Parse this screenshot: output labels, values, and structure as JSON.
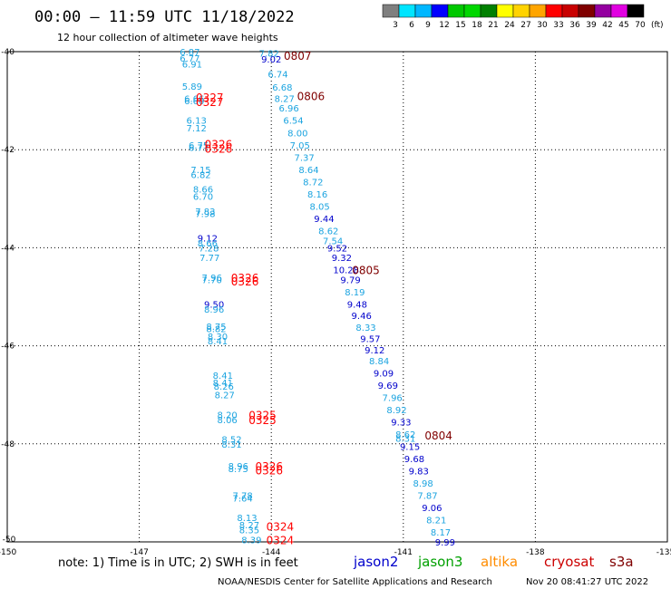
{
  "header": {
    "title": "00:00 — 11:59 UTC 11/18/2022",
    "subtitle": "12 hour collection of altimeter wave heights"
  },
  "colorbar": {
    "colors": [
      "#7f7f7f",
      "#00e5ff",
      "#00b7ff",
      "#0000ff",
      "#00c800",
      "#00d700",
      "#008000",
      "#ffff00",
      "#ffd300",
      "#ffa500",
      "#ff0000",
      "#c80000",
      "#7f0000",
      "#9400a0",
      "#e100e1",
      "#000000"
    ],
    "labels": [
      "3",
      "6",
      "9",
      "12",
      "15",
      "18",
      "21",
      "24",
      "27",
      "30",
      "33",
      "36",
      "39",
      "42",
      "45",
      "70"
    ],
    "unit": "(ft)"
  },
  "footer": {
    "note": "note:  1) Time is in UTC; 2) SWH is in feet",
    "credit": "NOAA/NESDIS Center for Satellite Applications and Research",
    "timestamp": "Nov 20 08:41:27 UTC 2022"
  },
  "legend": [
    {
      "name": "jason2",
      "color": "#0000cc"
    },
    {
      "name": "jason3",
      "color": "#00a000"
    },
    {
      "name": "altika",
      "color": "#ff8c00"
    },
    {
      "name": "cryosat",
      "color": "#cc0000"
    },
    {
      "name": "s3a",
      "color": "#800000"
    }
  ],
  "chart_data": {
    "type": "scatter",
    "title": "00:00 — 11:59 UTC 11/18/2022",
    "xlim": [
      -150,
      -135
    ],
    "ylim": [
      -50,
      -40
    ],
    "x_ticks": [
      "-150",
      "-147",
      "-144",
      "-141",
      "-138",
      "-135"
    ],
    "x_tick_values": [
      -150,
      -147,
      -144,
      -141,
      -138,
      -135
    ],
    "y_ticks": [
      "-40",
      "-42",
      "-44",
      "-46",
      "-48",
      "-50"
    ],
    "y_tick_values": [
      -40,
      -42,
      -44,
      -46,
      -48,
      -50
    ],
    "grid": true,
    "series": [
      {
        "name": "cyan track",
        "color": "#1ca4e0",
        "points": [
          {
            "x": -145.85,
            "y": -40.0,
            "label": "6.87"
          },
          {
            "x": -145.85,
            "y": -40.13,
            "label": "6.77"
          },
          {
            "x": -145.8,
            "y": -40.25,
            "label": "6.91"
          },
          {
            "x": -145.8,
            "y": -40.7,
            "label": "5.89"
          },
          {
            "x": -145.75,
            "y": -40.95,
            "label": "6.66"
          },
          {
            "x": -145.75,
            "y": -41.0,
            "label": "6.60"
          },
          {
            "x": -145.7,
            "y": -41.4,
            "label": "6.13"
          },
          {
            "x": -145.7,
            "y": -41.55,
            "label": "7.12"
          },
          {
            "x": -145.65,
            "y": -41.9,
            "label": "6.75"
          },
          {
            "x": -145.65,
            "y": -41.95,
            "label": "6.77"
          },
          {
            "x": -145.6,
            "y": -42.4,
            "label": "7.15"
          },
          {
            "x": -145.6,
            "y": -42.5,
            "label": "6.82"
          },
          {
            "x": -145.55,
            "y": -42.8,
            "label": "8.66"
          },
          {
            "x": -145.55,
            "y": -42.95,
            "label": "6.70"
          },
          {
            "x": -145.5,
            "y": -43.25,
            "label": "7.83"
          },
          {
            "x": -145.5,
            "y": -43.3,
            "label": "7.98"
          },
          {
            "x": -145.45,
            "y": -43.8,
            "label": "9.12",
            "color": "#0000cc"
          },
          {
            "x": -145.45,
            "y": -43.9,
            "label": "8.66"
          },
          {
            "x": -145.42,
            "y": -44.0,
            "label": "7.28"
          },
          {
            "x": -145.4,
            "y": -44.2,
            "label": "7.77"
          },
          {
            "x": -145.35,
            "y": -44.6,
            "label": "7.96"
          },
          {
            "x": -145.35,
            "y": -44.65,
            "label": "7.70"
          },
          {
            "x": -145.3,
            "y": -45.15,
            "label": "9.50",
            "color": "#0000cc"
          },
          {
            "x": -145.3,
            "y": -45.25,
            "label": "8.96"
          },
          {
            "x": -145.25,
            "y": -45.6,
            "label": "8.75"
          },
          {
            "x": -145.25,
            "y": -45.65,
            "label": "8.82"
          },
          {
            "x": -145.22,
            "y": -45.8,
            "label": "8.30"
          },
          {
            "x": -145.22,
            "y": -45.9,
            "label": "8.41"
          },
          {
            "x": -145.1,
            "y": -46.6,
            "label": "8.41"
          },
          {
            "x": -145.1,
            "y": -46.75,
            "label": "8.41"
          },
          {
            "x": -145.08,
            "y": -46.82,
            "label": "8.26"
          },
          {
            "x": -145.06,
            "y": -47.0,
            "label": "8.27"
          },
          {
            "x": -145.0,
            "y": -47.4,
            "label": "8.20"
          },
          {
            "x": -145.0,
            "y": -47.5,
            "label": "8.06"
          },
          {
            "x": -144.9,
            "y": -47.9,
            "label": "8.52"
          },
          {
            "x": -144.9,
            "y": -48.0,
            "label": "8.31"
          },
          {
            "x": -144.75,
            "y": -48.45,
            "label": "8.96"
          },
          {
            "x": -144.75,
            "y": -48.5,
            "label": "8.75"
          },
          {
            "x": -144.65,
            "y": -49.05,
            "label": "7.78"
          },
          {
            "x": -144.65,
            "y": -49.1,
            "label": "7.64"
          },
          {
            "x": -144.55,
            "y": -49.5,
            "label": "8.13"
          },
          {
            "x": -144.5,
            "y": -49.65,
            "label": "8.27"
          },
          {
            "x": -144.5,
            "y": -49.75,
            "label": "8.35"
          },
          {
            "x": -144.45,
            "y": -49.95,
            "label": "8.39"
          }
        ]
      },
      {
        "name": "descending track",
        "color": "#1ca4e0",
        "points": [
          {
            "x": -144.05,
            "y": -40.03,
            "label": "7.82"
          },
          {
            "x": -144.0,
            "y": -40.15,
            "label": "9.02",
            "color": "#0000cc"
          },
          {
            "x": -143.85,
            "y": -40.45,
            "label": "6.74"
          },
          {
            "x": -143.75,
            "y": -40.72,
            "label": "6.68"
          },
          {
            "x": -143.7,
            "y": -40.95,
            "label": "8.27"
          },
          {
            "x": -143.6,
            "y": -41.15,
            "label": "6.96"
          },
          {
            "x": -143.5,
            "y": -41.4,
            "label": "6.54"
          },
          {
            "x": -143.4,
            "y": -41.65,
            "label": "8.00"
          },
          {
            "x": -143.35,
            "y": -41.9,
            "label": "7.05"
          },
          {
            "x": -143.25,
            "y": -42.15,
            "label": "7.37"
          },
          {
            "x": -143.15,
            "y": -42.4,
            "label": "8.64"
          },
          {
            "x": -143.05,
            "y": -42.65,
            "label": "8.72"
          },
          {
            "x": -142.95,
            "y": -42.9,
            "label": "8.16"
          },
          {
            "x": -142.9,
            "y": -43.15,
            "label": "8.05"
          },
          {
            "x": -142.8,
            "y": -43.4,
            "label": "9.44",
            "color": "#0000cc"
          },
          {
            "x": -142.7,
            "y": -43.65,
            "label": "8.62"
          },
          {
            "x": -142.6,
            "y": -43.85,
            "label": "7.54"
          },
          {
            "x": -142.5,
            "y": -44.0,
            "label": "9.52",
            "color": "#0000cc"
          },
          {
            "x": -142.4,
            "y": -44.2,
            "label": "9.32",
            "color": "#0000cc"
          },
          {
            "x": -142.3,
            "y": -44.45,
            "label": "10.28",
            "color": "#0000cc"
          },
          {
            "x": -142.2,
            "y": -44.65,
            "label": "9.79",
            "color": "#0000cc"
          },
          {
            "x": -142.1,
            "y": -44.9,
            "label": "8.19"
          },
          {
            "x": -142.05,
            "y": -45.15,
            "label": "9.48",
            "color": "#0000cc"
          },
          {
            "x": -141.95,
            "y": -45.38,
            "label": "9.46",
            "color": "#0000cc"
          },
          {
            "x": -141.85,
            "y": -45.62,
            "label": "8.33"
          },
          {
            "x": -141.75,
            "y": -45.85,
            "label": "9.57",
            "color": "#0000cc"
          },
          {
            "x": -141.65,
            "y": -46.08,
            "label": "9.12",
            "color": "#0000cc"
          },
          {
            "x": -141.55,
            "y": -46.3,
            "label": "8.84"
          },
          {
            "x": -141.45,
            "y": -46.55,
            "label": "9.09",
            "color": "#0000cc"
          },
          {
            "x": -141.35,
            "y": -46.8,
            "label": "9.69",
            "color": "#0000cc"
          },
          {
            "x": -141.25,
            "y": -47.05,
            "label": "7.96"
          },
          {
            "x": -141.15,
            "y": -47.3,
            "label": "8.92"
          },
          {
            "x": -141.05,
            "y": -47.55,
            "label": "9.33",
            "color": "#0000cc"
          },
          {
            "x": -140.95,
            "y": -47.8,
            "label": "8.62"
          },
          {
            "x": -140.95,
            "y": -47.88,
            "label": "8.31"
          },
          {
            "x": -140.85,
            "y": -48.05,
            "label": "9.15",
            "color": "#0000cc"
          },
          {
            "x": -140.75,
            "y": -48.3,
            "label": "9.68",
            "color": "#0000cc"
          },
          {
            "x": -140.65,
            "y": -48.55,
            "label": "9.83",
            "color": "#0000cc"
          },
          {
            "x": -140.55,
            "y": -48.8,
            "label": "8.98"
          },
          {
            "x": -140.45,
            "y": -49.05,
            "label": "7.87"
          },
          {
            "x": -140.35,
            "y": -49.3,
            "label": "9.06",
            "color": "#0000cc"
          },
          {
            "x": -140.25,
            "y": -49.55,
            "label": "8.21"
          },
          {
            "x": -140.15,
            "y": -49.8,
            "label": "8.17"
          },
          {
            "x": -140.05,
            "y": -50.0,
            "label": "9.99",
            "color": "#0000cc"
          }
        ]
      }
    ],
    "annotations": [
      {
        "x": -143.4,
        "y": -40.07,
        "text": "0807",
        "color": "#800000"
      },
      {
        "x": -143.1,
        "y": -40.9,
        "text": "0806",
        "color": "#800000"
      },
      {
        "x": -141.85,
        "y": -44.45,
        "text": "0805",
        "color": "#800000"
      },
      {
        "x": -140.2,
        "y": -47.82,
        "text": "0804",
        "color": "#800000"
      },
      {
        "x": -145.4,
        "y": -40.92,
        "text": "0327",
        "color": "#ff0000"
      },
      {
        "x": -145.4,
        "y": -41.02,
        "text": "0327",
        "color": "#ff0000"
      },
      {
        "x": -145.2,
        "y": -41.88,
        "text": "0326",
        "color": "#ff0000"
      },
      {
        "x": -145.2,
        "y": -41.97,
        "text": "0326",
        "color": "#ff0000"
      },
      {
        "x": -144.6,
        "y": -44.6,
        "text": "0326",
        "color": "#ff0000"
      },
      {
        "x": -144.6,
        "y": -44.68,
        "text": "0326",
        "color": "#ff0000"
      },
      {
        "x": -144.2,
        "y": -47.4,
        "text": "0325",
        "color": "#ff0000"
      },
      {
        "x": -144.2,
        "y": -47.5,
        "text": "0325",
        "color": "#ff0000"
      },
      {
        "x": -144.05,
        "y": -48.45,
        "text": "0326",
        "color": "#ff0000"
      },
      {
        "x": -144.05,
        "y": -48.53,
        "text": "0326",
        "color": "#ff0000"
      },
      {
        "x": -143.8,
        "y": -49.68,
        "text": "0324",
        "color": "#ff0000"
      },
      {
        "x": -143.8,
        "y": -49.95,
        "text": "0324",
        "color": "#ff0000"
      }
    ]
  }
}
